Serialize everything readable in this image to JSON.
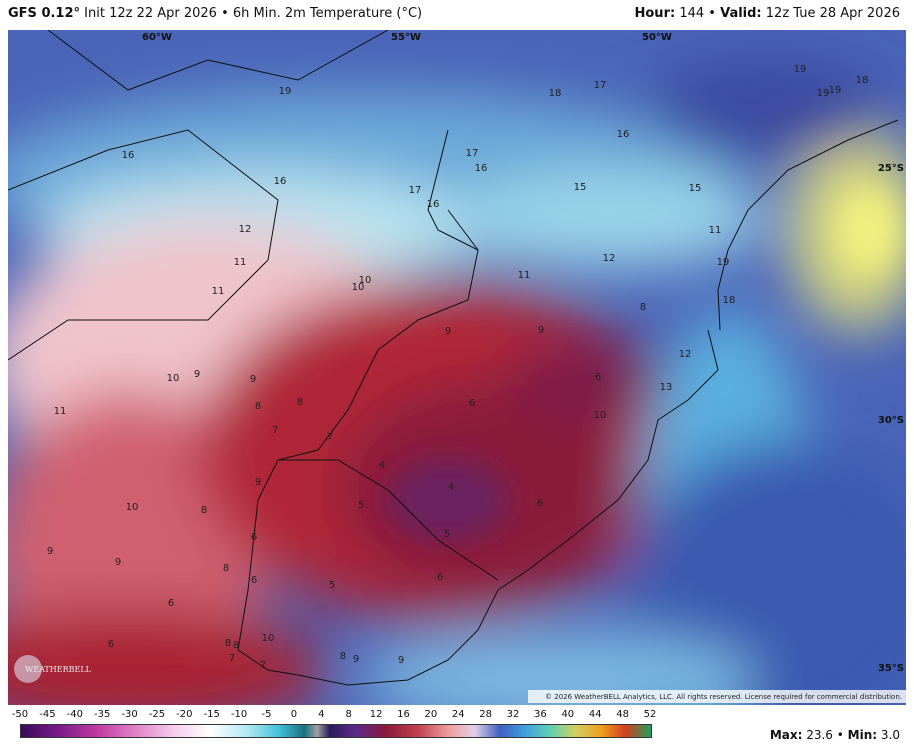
{
  "header": {
    "model": "GFS 0.12°",
    "description": "Init 12z 22 Apr 2026 • 6h Min. 2m Temperature (°C)",
    "hour_label": "Hour:",
    "hour": "144 •",
    "valid_label": "Valid:",
    "valid": "12z Tue 28 Apr 2026"
  },
  "map": {
    "longitudes": [
      "60°W",
      "55°W",
      "50°W"
    ],
    "latitudes": [
      "25°S",
      "30°S",
      "35°S"
    ],
    "copyright": "© 2026 WeatherBELL Analytics, LLC. All rights reserved. License required for commercial distribution.",
    "logo": "WEATHERBELL",
    "labels": [
      19,
      18,
      17,
      19,
      18,
      19,
      19,
      16,
      16,
      17,
      16,
      16,
      15,
      15,
      17,
      16,
      12,
      11,
      11,
      10,
      10,
      11,
      12,
      19,
      11,
      18,
      8,
      9,
      9,
      12,
      10,
      9,
      9,
      6,
      13,
      11,
      8,
      8,
      6,
      10,
      7,
      7,
      4,
      4,
      9,
      10,
      8,
      5,
      6,
      5,
      6,
      9,
      9,
      8,
      6,
      5,
      6,
      6,
      6,
      8,
      8,
      10,
      7,
      7,
      8,
      9,
      9
    ]
  },
  "colorbar": [
    -50,
    -45,
    -40,
    -35,
    -30,
    -25,
    -20,
    -15,
    -10,
    -5,
    0,
    4,
    8,
    12,
    16,
    20,
    24,
    28,
    32,
    36,
    40,
    44,
    48,
    52
  ],
  "footer": {
    "max_label": "Max:",
    "max": "23.6 •",
    "min_label": "Min:",
    "min": "3.0"
  }
}
